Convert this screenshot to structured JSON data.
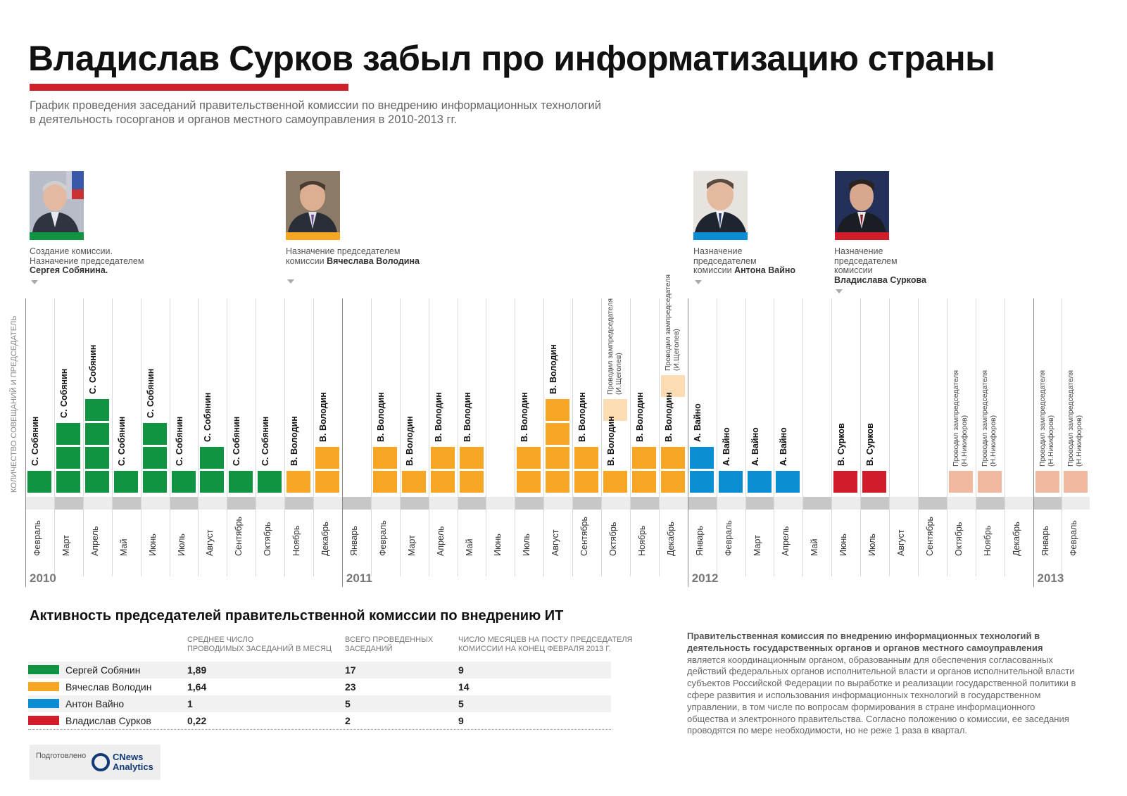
{
  "title": "Владислав Сурков забыл про информатизацию страны",
  "subtitle_line1": "График проведения заседаний правительственной комиссии по внедрению информационных технологий",
  "subtitle_line2": "в деятельность госорганов и органов местного самоуправления в 2010-2013 гг.",
  "colors": {
    "sobyanin": "#119442",
    "volodin": "#f6a623",
    "vaino": "#0a8dd3",
    "surkov": "#d11d29",
    "deputy": "#f2b9a1",
    "deputy_light": "#fbdcb3",
    "strip": "#c7c7c7",
    "accent": "#d0202a"
  },
  "portraits": [
    {
      "name": "Сергей Собянин",
      "icon": "portrait-photo",
      "color": "#119442"
    },
    {
      "name": "Вячеслав Володин",
      "icon": "portrait-photo",
      "color": "#f6a623"
    },
    {
      "name": "Антон Вайно",
      "icon": "portrait-photo",
      "color": "#0a8dd3"
    },
    {
      "name": "Владислав Сурков",
      "icon": "portrait-photo",
      "color": "#d11d29"
    }
  ],
  "notes": {
    "sobyanin": {
      "line1": "Создание комиссии.",
      "line2": "Назначение председателем",
      "bold": "Сергея Собянина."
    },
    "volodin": {
      "line1": "Назначение председателем",
      "line2": "комиссии ",
      "bold": "Вячеслава Володина"
    },
    "vaino": {
      "line1": "Назначение",
      "line2": "председателем",
      "line3": "комиссии ",
      "bold": "Антона Вайно"
    },
    "surkov": {
      "line1": "Назначение",
      "line2": "председателем",
      "line3": "комиссии",
      "bold": "Владислава Суркова"
    }
  },
  "axis_title": "КОЛИЧЕСТВО СОВЕЩАНИЙ И ПРЕДСЕДАТЕЛЬ",
  "chart_data": {
    "type": "bar",
    "title": "График проведения заседаний правительственной комиссии",
    "ylabel": "КОЛИЧЕСТВО СОВЕЩАНИЙ И ПРЕДСЕДАТЕЛЬ",
    "years": [
      "2010",
      "2011",
      "2012",
      "2013"
    ],
    "months": [
      {
        "month": "Февраль",
        "year": "2010",
        "count": 1,
        "chair": "С. Собянин",
        "color": "sobyanin"
      },
      {
        "month": "Март",
        "year": "2010",
        "count": 3,
        "chair": "С. Собянин",
        "color": "sobyanin"
      },
      {
        "month": "Апрель",
        "year": "2010",
        "count": 4,
        "chair": "С. Собянин",
        "color": "sobyanin"
      },
      {
        "month": "Май",
        "year": "2010",
        "count": 1,
        "chair": "С. Собянин",
        "color": "sobyanin"
      },
      {
        "month": "Июнь",
        "year": "2010",
        "count": 3,
        "chair": "С. Собянин",
        "color": "sobyanin"
      },
      {
        "month": "Июль",
        "year": "2010",
        "count": 1,
        "chair": "С. Собянин",
        "color": "sobyanin"
      },
      {
        "month": "Август",
        "year": "2010",
        "count": 2,
        "chair": "С. Собянин",
        "color": "sobyanin"
      },
      {
        "month": "Сентябрь",
        "year": "2010",
        "count": 1,
        "chair": "С. Собянин",
        "color": "sobyanin"
      },
      {
        "month": "Октябрь",
        "year": "2010",
        "count": 1,
        "chair": "С. Собянин",
        "color": "sobyanin"
      },
      {
        "month": "Ноябрь",
        "year": "2010",
        "count": 1,
        "chair": "В. Володин",
        "color": "volodin"
      },
      {
        "month": "Декабрь",
        "year": "2010",
        "count": 2,
        "chair": "В. Володин",
        "color": "volodin"
      },
      {
        "month": "Январь",
        "year": "2011",
        "count": 0,
        "chair": "",
        "color": "volodin"
      },
      {
        "month": "Февраль",
        "year": "2011",
        "count": 2,
        "chair": "В. Володин",
        "color": "volodin"
      },
      {
        "month": "Март",
        "year": "2011",
        "count": 1,
        "chair": "В. Володин",
        "color": "volodin"
      },
      {
        "month": "Апрель",
        "year": "2011",
        "count": 2,
        "chair": "В. Володин",
        "color": "volodin"
      },
      {
        "month": "Май",
        "year": "2011",
        "count": 2,
        "chair": "В. Володин",
        "color": "volodin"
      },
      {
        "month": "Июнь",
        "year": "2011",
        "count": 0,
        "chair": "",
        "color": "volodin"
      },
      {
        "month": "Июль",
        "year": "2011",
        "count": 2,
        "chair": "В. Володин",
        "color": "volodin"
      },
      {
        "month": "Август",
        "year": "2011",
        "count": 4,
        "chair": "В. Володин",
        "color": "volodin"
      },
      {
        "month": "Сентябрь",
        "year": "2011",
        "count": 2,
        "chair": "В. Володин",
        "color": "volodin"
      },
      {
        "month": "Октябрь",
        "year": "2011",
        "count": 1,
        "chair": "В. Володин",
        "color": "volodin",
        "deputy": 1,
        "deputy_note": [
          "Проводил зампредседателя",
          "(И.Щеголев)"
        ]
      },
      {
        "month": "Ноябрь",
        "year": "2011",
        "count": 2,
        "chair": "В. Володин",
        "color": "volodin"
      },
      {
        "month": "Декабрь",
        "year": "2011",
        "count": 2,
        "chair": "В. Володин",
        "color": "volodin",
        "deputy": 1,
        "deputy_note": [
          "Проводил зампредседателя",
          "(И.Щеголев)"
        ]
      },
      {
        "month": "Январь",
        "year": "2012",
        "count": 2,
        "chair": "А. Вайно",
        "color": "vaino"
      },
      {
        "month": "Февраль",
        "year": "2012",
        "count": 1,
        "chair": "А. Вайно",
        "color": "vaino"
      },
      {
        "month": "Март",
        "year": "2012",
        "count": 1,
        "chair": "А. Вайно",
        "color": "vaino"
      },
      {
        "month": "Апрель",
        "year": "2012",
        "count": 1,
        "chair": "А. Вайно",
        "color": "vaino"
      },
      {
        "month": "Май",
        "year": "2012",
        "count": 0,
        "chair": "",
        "color": "vaino"
      },
      {
        "month": "Июнь",
        "year": "2012",
        "count": 1,
        "chair": "В. Сурков",
        "color": "surkov"
      },
      {
        "month": "Июль",
        "year": "2012",
        "count": 1,
        "chair": "В. Сурков",
        "color": "surkov"
      },
      {
        "month": "Август",
        "year": "2012",
        "count": 0,
        "chair": "",
        "color": "surkov"
      },
      {
        "month": "Сентябрь",
        "year": "2012",
        "count": 0,
        "chair": "",
        "color": "surkov"
      },
      {
        "month": "Октябрь",
        "year": "2012",
        "count": 0,
        "chair": "",
        "color": "surkov",
        "deputy": 1,
        "deputy_note": [
          "Проводил зампредседателя",
          "(Н.Никифоров)"
        ]
      },
      {
        "month": "Ноябрь",
        "year": "2012",
        "count": 0,
        "chair": "",
        "color": "surkov",
        "deputy": 1,
        "deputy_note": [
          "Проводил зампредседателя",
          "(Н.Никифоров)"
        ]
      },
      {
        "month": "Декабрь",
        "year": "2012",
        "count": 0,
        "chair": "",
        "color": "surkov"
      },
      {
        "month": "Январь",
        "year": "2013",
        "count": 0,
        "chair": "",
        "color": "surkov",
        "deputy": 1,
        "deputy_note": [
          "Проводил зампредседателя",
          "(Н.Никифоров)"
        ]
      },
      {
        "month": "Февраль",
        "year": "2013",
        "count": 0,
        "chair": "",
        "color": "surkov",
        "deputy": 1,
        "deputy_note": [
          "Проводил зампредседателя",
          "(Н.Никифоров)"
        ]
      }
    ]
  },
  "table": {
    "title": "Активность председателей правительственной комиссии по внедрению ИТ",
    "headers": [
      "Среднее число\nпроводимых заседаний в месяц",
      "Всего проведенных\nзаседаний",
      "Число месяцев на посту председателя\nкомиссии на конец февраля 2013 г."
    ],
    "rows": [
      {
        "name": "Сергей Собянин",
        "avg": "1,89",
        "total": "17",
        "months": "9",
        "color": "#119442"
      },
      {
        "name": "Вячеслав Володин",
        "avg": "1,64",
        "total": "23",
        "months": "14",
        "color": "#f6a623"
      },
      {
        "name": "Антон Вайно",
        "avg": "1",
        "total": "5",
        "months": "5",
        "color": "#0a8dd3"
      },
      {
        "name": "Владислав Сурков",
        "avg": "0,22",
        "total": "2",
        "months": "9",
        "color": "#d11d29"
      }
    ]
  },
  "info": {
    "bold": "Правительственная комиссия по внедрению информационных технологий в деятельность государственных органов и органов местного самоуправления",
    "text": " является координационным органом, образованным для обеспечения согласованных действий федеральных органов исполнительной власти и органов исполнительной власти субъектов Российской Федерации по выработке и реализации государственной политики в сфере развития и использования информационных технологий в государственном управлении, в том числе по вопросам формирования в стране информационного общества и электронного правительства. Согласно положению о комиссии, ее заседания проводятся по мере необходимости, но не реже 1 раза в квартал."
  },
  "credit": {
    "caption": "Подготовлено",
    "brand_line1": "CNews",
    "brand_line2": "Analytics",
    "logo_icon": "cnews-logo-icon"
  }
}
